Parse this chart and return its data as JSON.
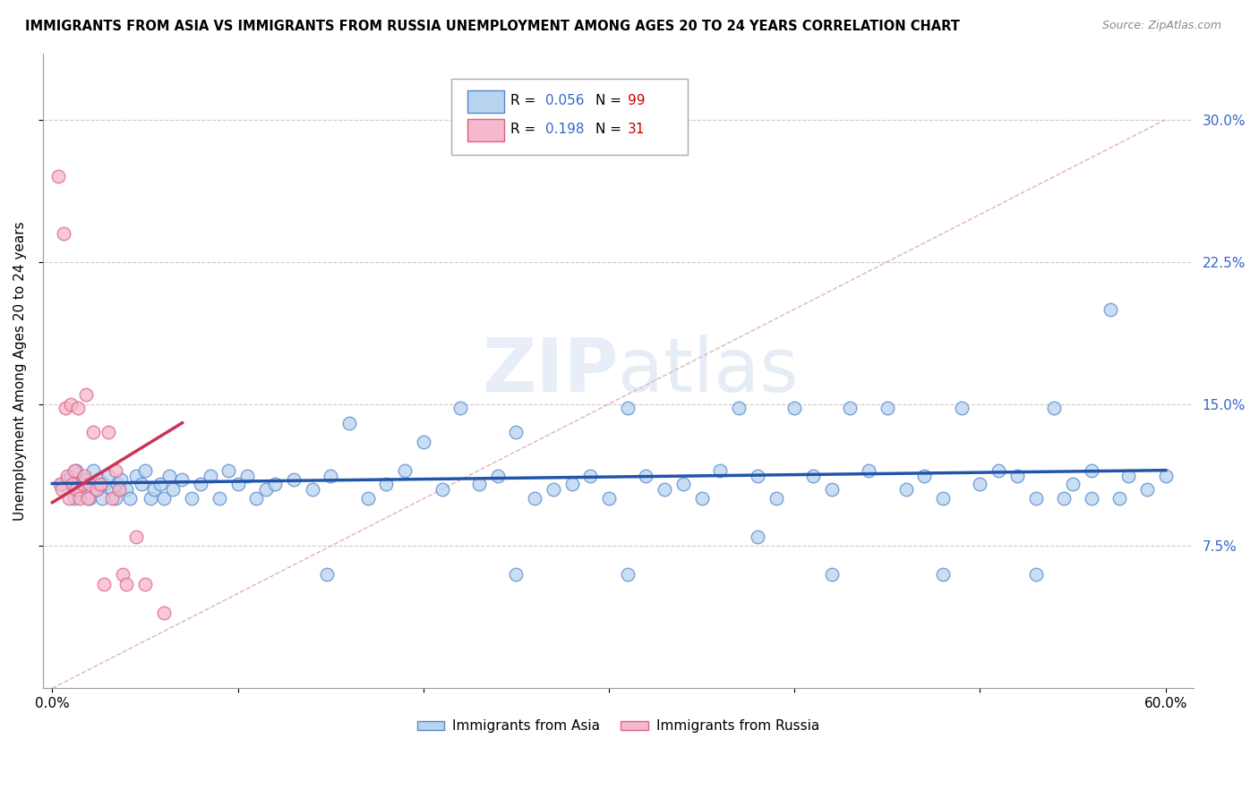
{
  "title": "IMMIGRANTS FROM ASIA VS IMMIGRANTS FROM RUSSIA UNEMPLOYMENT AMONG AGES 20 TO 24 YEARS CORRELATION CHART",
  "source": "Source: ZipAtlas.com",
  "ylabel": "Unemployment Among Ages 20 to 24 years",
  "xlim": [
    -0.005,
    0.615
  ],
  "ylim": [
    0.0,
    0.335
  ],
  "xticks": [
    0.0,
    0.1,
    0.2,
    0.3,
    0.4,
    0.5,
    0.6
  ],
  "xticklabels": [
    "0.0%",
    "",
    "",
    "",
    "",
    "",
    "60.0%"
  ],
  "yticks_right": [
    0.075,
    0.15,
    0.225,
    0.3
  ],
  "ytick_right_labels": [
    "7.5%",
    "15.0%",
    "22.5%",
    "30.0%"
  ],
  "watermark": "ZIPatlas",
  "legend_asia_r": "0.056",
  "legend_asia_n": "99",
  "legend_russia_r": "0.198",
  "legend_russia_n": "31",
  "color_asia_face": "#b8d4f0",
  "color_asia_edge": "#5588cc",
  "color_russia_face": "#f5b8cc",
  "color_russia_edge": "#e06080",
  "color_asia_line": "#2255aa",
  "color_russia_line": "#cc3355",
  "color_diag_line": "#ddaaaa",
  "background_color": "#ffffff",
  "grid_color": "#cccccc",
  "asia_x": [
    0.005,
    0.008,
    0.01,
    0.012,
    0.013,
    0.015,
    0.016,
    0.018,
    0.02,
    0.022,
    0.024,
    0.025,
    0.027,
    0.028,
    0.03,
    0.032,
    0.034,
    0.035,
    0.037,
    0.04,
    0.042,
    0.045,
    0.048,
    0.05,
    0.053,
    0.055,
    0.058,
    0.06,
    0.063,
    0.065,
    0.07,
    0.075,
    0.08,
    0.085,
    0.09,
    0.095,
    0.1,
    0.105,
    0.11,
    0.115,
    0.12,
    0.13,
    0.14,
    0.15,
    0.16,
    0.17,
    0.18,
    0.19,
    0.2,
    0.21,
    0.22,
    0.23,
    0.24,
    0.25,
    0.26,
    0.27,
    0.28,
    0.29,
    0.3,
    0.31,
    0.32,
    0.33,
    0.34,
    0.35,
    0.36,
    0.37,
    0.38,
    0.39,
    0.4,
    0.41,
    0.42,
    0.43,
    0.44,
    0.45,
    0.46,
    0.47,
    0.48,
    0.49,
    0.5,
    0.51,
    0.52,
    0.53,
    0.54,
    0.55,
    0.56,
    0.57,
    0.575,
    0.58,
    0.59,
    0.6,
    0.148,
    0.25,
    0.31,
    0.42,
    0.48,
    0.53,
    0.545,
    0.38,
    0.56
  ],
  "asia_y": [
    0.108,
    0.11,
    0.112,
    0.1,
    0.115,
    0.105,
    0.108,
    0.11,
    0.1,
    0.115,
    0.105,
    0.11,
    0.1,
    0.108,
    0.112,
    0.105,
    0.1,
    0.108,
    0.11,
    0.105,
    0.1,
    0.112,
    0.108,
    0.115,
    0.1,
    0.105,
    0.108,
    0.1,
    0.112,
    0.105,
    0.11,
    0.1,
    0.108,
    0.112,
    0.1,
    0.115,
    0.108,
    0.112,
    0.1,
    0.105,
    0.108,
    0.11,
    0.105,
    0.112,
    0.14,
    0.1,
    0.108,
    0.115,
    0.13,
    0.105,
    0.148,
    0.108,
    0.112,
    0.135,
    0.1,
    0.105,
    0.108,
    0.112,
    0.1,
    0.148,
    0.112,
    0.105,
    0.108,
    0.1,
    0.115,
    0.148,
    0.112,
    0.1,
    0.148,
    0.112,
    0.105,
    0.148,
    0.115,
    0.148,
    0.105,
    0.112,
    0.1,
    0.148,
    0.108,
    0.115,
    0.112,
    0.1,
    0.148,
    0.108,
    0.115,
    0.2,
    0.1,
    0.112,
    0.105,
    0.112,
    0.06,
    0.06,
    0.06,
    0.06,
    0.06,
    0.06,
    0.1,
    0.08,
    0.1
  ],
  "russia_x": [
    0.003,
    0.004,
    0.005,
    0.006,
    0.007,
    0.008,
    0.009,
    0.01,
    0.011,
    0.012,
    0.013,
    0.014,
    0.015,
    0.016,
    0.017,
    0.018,
    0.019,
    0.02,
    0.022,
    0.024,
    0.026,
    0.028,
    0.03,
    0.032,
    0.034,
    0.036,
    0.038,
    0.04,
    0.045,
    0.05,
    0.06
  ],
  "russia_y": [
    0.27,
    0.108,
    0.105,
    0.24,
    0.148,
    0.112,
    0.1,
    0.15,
    0.108,
    0.115,
    0.105,
    0.148,
    0.1,
    0.108,
    0.112,
    0.155,
    0.1,
    0.108,
    0.135,
    0.105,
    0.108,
    0.055,
    0.135,
    0.1,
    0.115,
    0.105,
    0.06,
    0.055,
    0.08,
    0.055,
    0.04
  ],
  "russia_trend_x": [
    0.0,
    0.07
  ],
  "russia_trend_y": [
    0.098,
    0.14
  ],
  "asia_trend_x": [
    0.0,
    0.6
  ],
  "asia_trend_y": [
    0.108,
    0.115
  ]
}
